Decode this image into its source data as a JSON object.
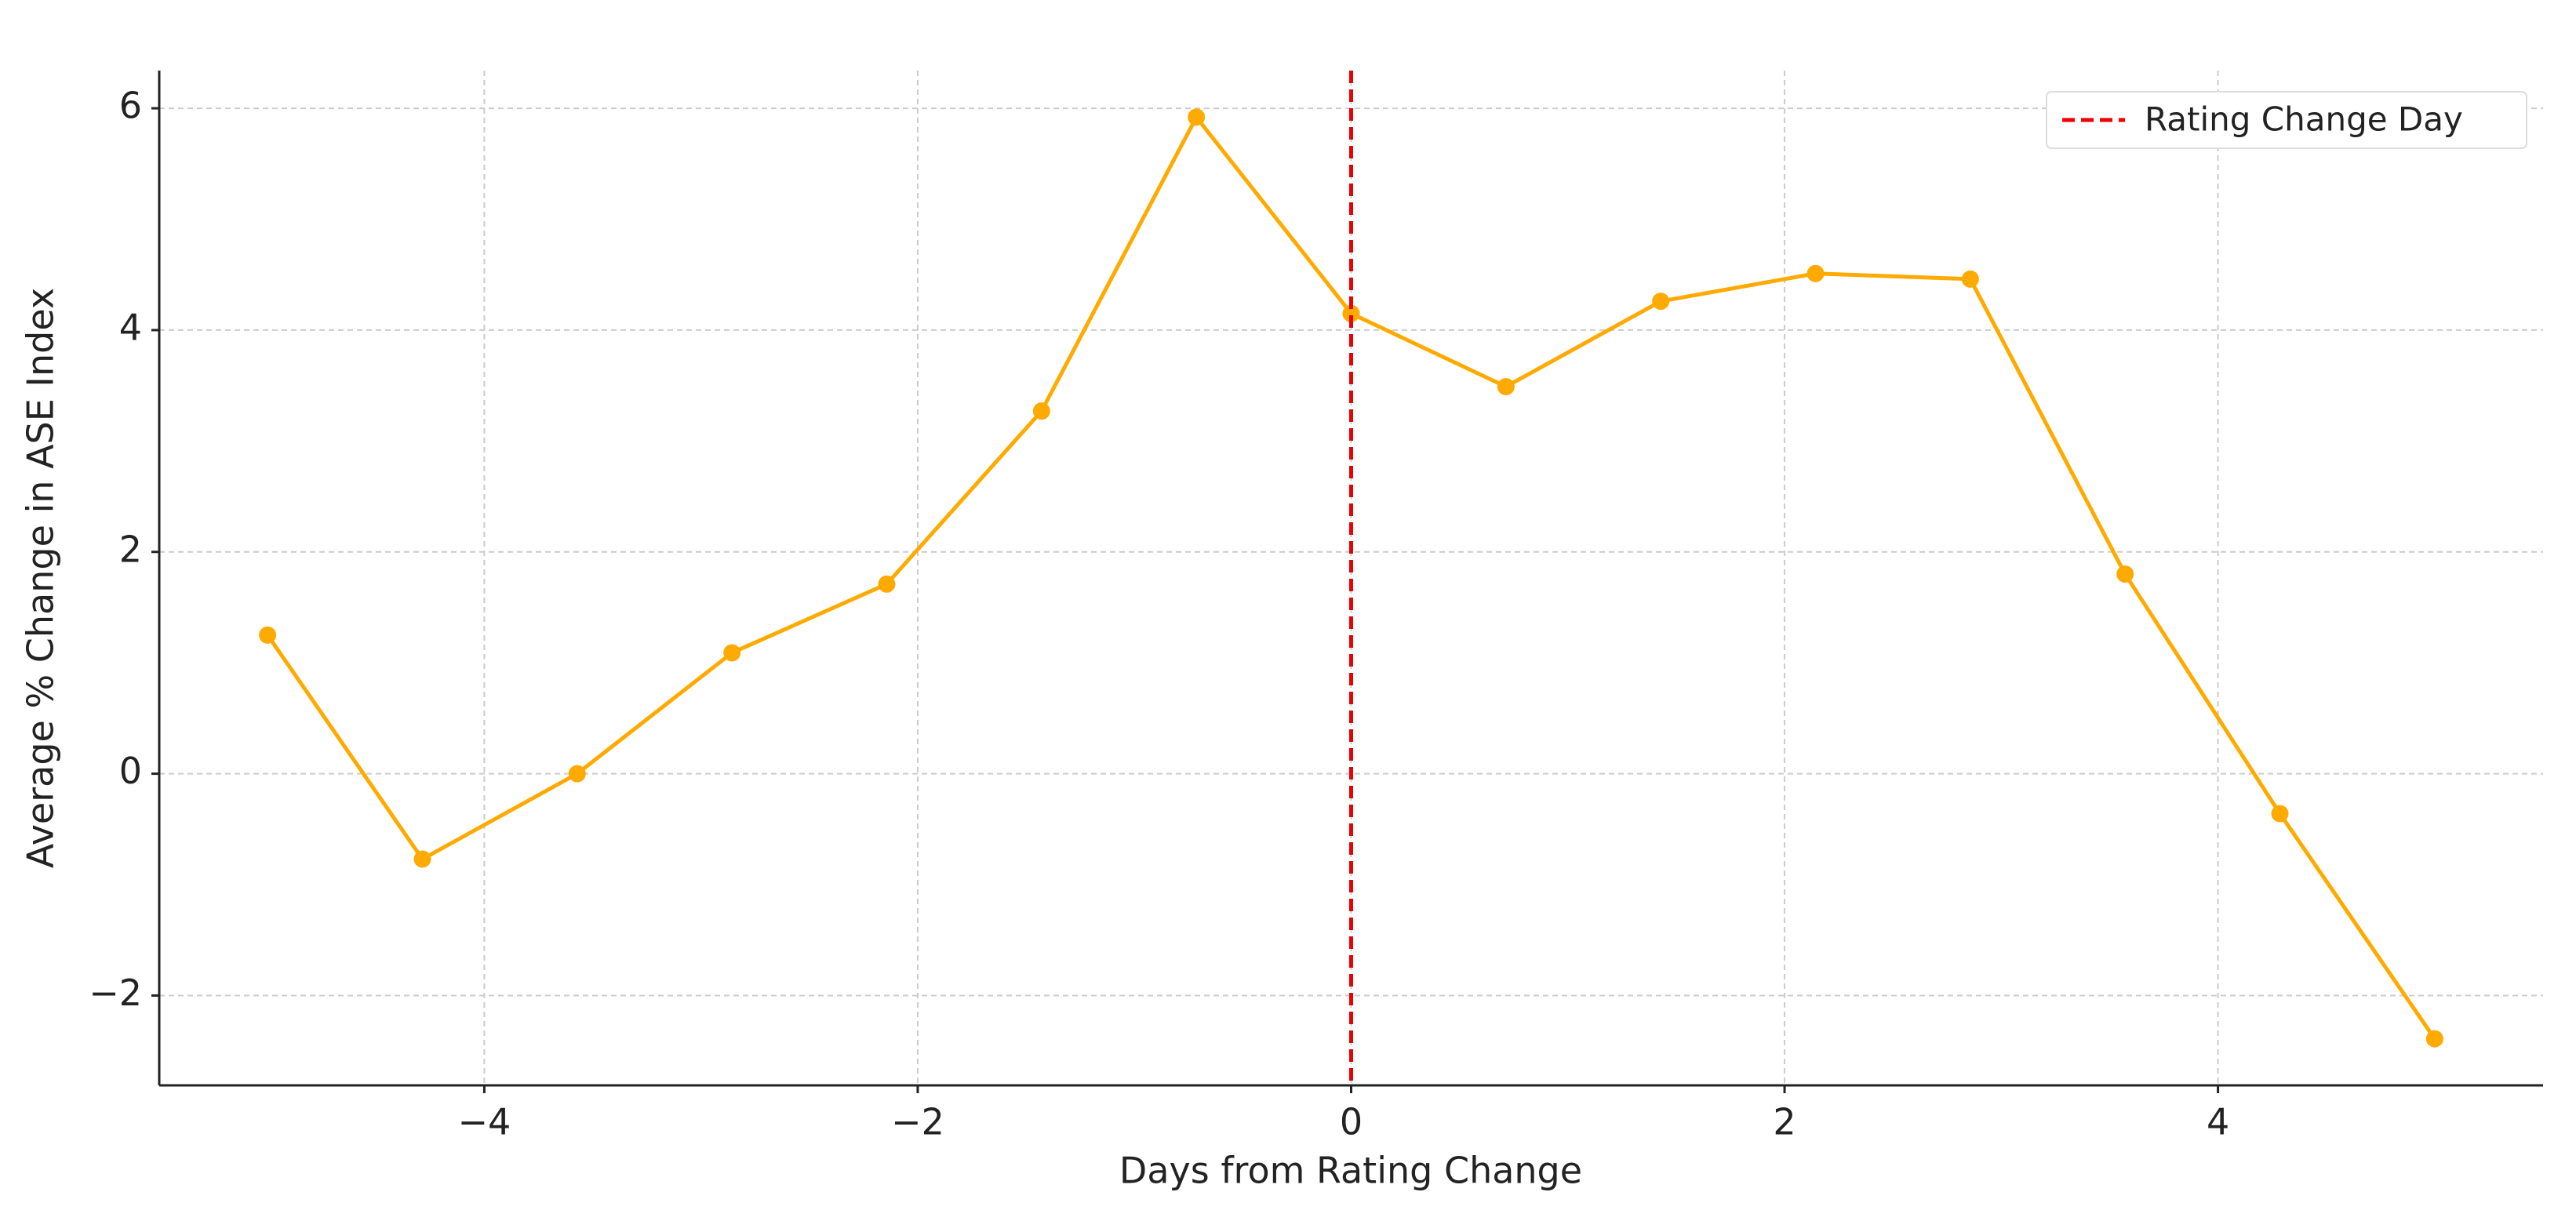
{
  "chart_data": {
    "type": "line",
    "x_label": "Days from Rating Change",
    "y_label": "Average % Change in ASE Index",
    "x": [
      -5,
      -4.2857,
      -3.5714,
      -2.8571,
      -2.1429,
      -1.4286,
      -0.7143,
      0,
      0.7143,
      1.4286,
      2.1429,
      2.8571,
      3.5714,
      4.2857,
      5
    ],
    "series": [
      {
        "color": "#FFAA00",
        "values": [
          1.25,
          -0.77,
          0.0,
          1.09,
          1.71,
          3.27,
          5.92,
          4.15,
          3.49,
          4.26,
          4.51,
          4.46,
          1.8,
          -0.36,
          -2.39
        ]
      }
    ],
    "vline": {
      "x": 0,
      "label": "Rating Change Day",
      "color": "#ee0000"
    },
    "xlim": [
      -5.5,
      5.5
    ],
    "ylim": [
      -2.81,
      6.34
    ],
    "xticks": [
      {
        "value": -4,
        "label": "−4"
      },
      {
        "value": -2,
        "label": "−2"
      },
      0,
      2,
      4
    ],
    "yticks": [
      {
        "value": -2,
        "label": "−2"
      },
      0,
      2,
      4,
      6
    ],
    "grid": true,
    "legend": "upper right"
  }
}
